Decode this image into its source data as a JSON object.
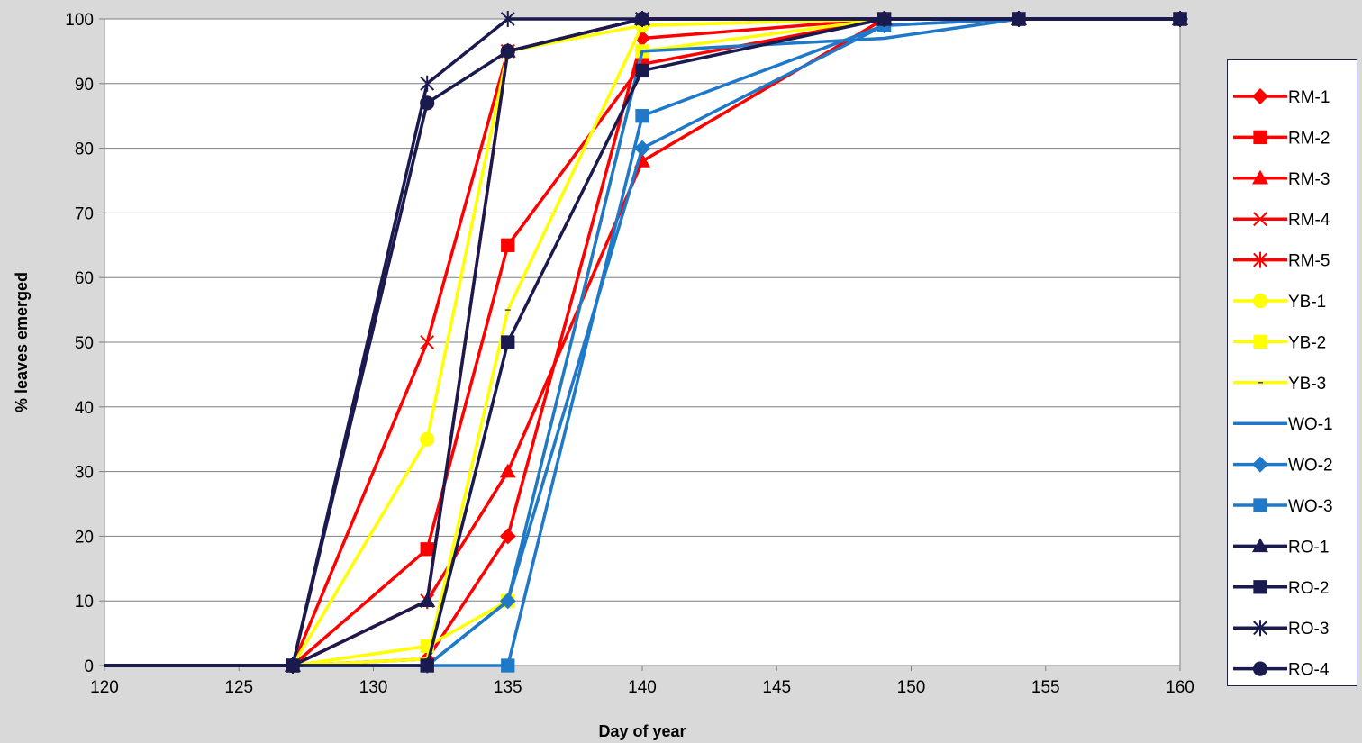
{
  "chart_data": {
    "type": "line",
    "title": "",
    "xlabel": "Day of year",
    "ylabel": "% leaves emerged",
    "xlim": [
      120,
      160
    ],
    "ylim": [
      0,
      100
    ],
    "xticks": [
      "120",
      "125",
      "130",
      "135",
      "140",
      "145",
      "150",
      "155",
      "160"
    ],
    "yticks": [
      "0",
      "10",
      "20",
      "30",
      "40",
      "50",
      "60",
      "70",
      "80",
      "90",
      "100"
    ],
    "grid": "horizontal",
    "legend_position": "right",
    "series": [
      {
        "name": "RM-1",
        "color": "#ff0000",
        "marker": "diamond",
        "points": [
          [
            120,
            0
          ],
          [
            127,
            0
          ],
          [
            132,
            1
          ],
          [
            135,
            20
          ],
          [
            140,
            97
          ],
          [
            149,
            100
          ],
          [
            154,
            100
          ],
          [
            160,
            100
          ]
        ]
      },
      {
        "name": "RM-2",
        "color": "#ff0000",
        "marker": "square",
        "points": [
          [
            120,
            0
          ],
          [
            127,
            0
          ],
          [
            132,
            18
          ],
          [
            135,
            65
          ],
          [
            140,
            93
          ],
          [
            149,
            100
          ],
          [
            154,
            100
          ],
          [
            160,
            100
          ]
        ]
      },
      {
        "name": "RM-3",
        "color": "#ff0000",
        "marker": "triangle",
        "points": [
          [
            120,
            0
          ],
          [
            127,
            0
          ],
          [
            132,
            10
          ],
          [
            135,
            30
          ],
          [
            140,
            78
          ],
          [
            149,
            100
          ],
          [
            154,
            100
          ],
          [
            160,
            100
          ]
        ]
      },
      {
        "name": "RM-4",
        "color": "#ff0000",
        "marker": "x",
        "points": [
          [
            120,
            0
          ],
          [
            127,
            0
          ],
          [
            132,
            50
          ],
          [
            135,
            95
          ],
          [
            140,
            100
          ],
          [
            149,
            100
          ],
          [
            154,
            100
          ],
          [
            160,
            100
          ]
        ]
      },
      {
        "name": "RM-5",
        "color": "#ff0000",
        "marker": "star",
        "points": [
          [
            120,
            0
          ],
          [
            127,
            0
          ],
          [
            132,
            10
          ],
          [
            135,
            95
          ],
          [
            140,
            100
          ],
          [
            149,
            100
          ],
          [
            154,
            100
          ],
          [
            160,
            100
          ]
        ]
      },
      {
        "name": "YB-1",
        "color": "#ffff00",
        "marker": "circle",
        "points": [
          [
            120,
            0
          ],
          [
            127,
            0
          ],
          [
            132,
            35
          ],
          [
            135,
            95
          ],
          [
            140,
            99
          ],
          [
            149,
            100
          ],
          [
            154,
            100
          ],
          [
            160,
            100
          ]
        ]
      },
      {
        "name": "YB-2",
        "color": "#ffff00",
        "marker": "square",
        "points": [
          [
            120,
            0
          ],
          [
            127,
            0
          ],
          [
            132,
            3
          ],
          [
            135,
            10
          ],
          [
            140,
            95
          ],
          [
            149,
            100
          ],
          [
            154,
            100
          ],
          [
            160,
            100
          ]
        ]
      },
      {
        "name": "YB-3",
        "color": "#ffff00",
        "marker": "dash",
        "points": [
          [
            120,
            0
          ],
          [
            127,
            0
          ],
          [
            132,
            1
          ],
          [
            135,
            55
          ],
          [
            140,
            99
          ],
          [
            149,
            100
          ],
          [
            154,
            100
          ],
          [
            160,
            100
          ]
        ]
      },
      {
        "name": "WO-1",
        "color": "#1f78c8",
        "marker": "none",
        "points": [
          [
            120,
            0
          ],
          [
            127,
            0
          ],
          [
            132,
            0
          ],
          [
            135,
            10
          ],
          [
            140,
            95
          ],
          [
            149,
            97
          ],
          [
            154,
            100
          ],
          [
            160,
            100
          ]
        ]
      },
      {
        "name": "WO-2",
        "color": "#1f78c8",
        "marker": "diamond",
        "points": [
          [
            120,
            0
          ],
          [
            127,
            0
          ],
          [
            132,
            0
          ],
          [
            135,
            10
          ],
          [
            140,
            80
          ],
          [
            149,
            99
          ],
          [
            154,
            100
          ],
          [
            160,
            100
          ]
        ]
      },
      {
        "name": "WO-3",
        "color": "#1f78c8",
        "marker": "square",
        "points": [
          [
            120,
            0
          ],
          [
            127,
            0
          ],
          [
            132,
            0
          ],
          [
            135,
            0
          ],
          [
            140,
            85
          ],
          [
            149,
            99
          ],
          [
            154,
            100
          ],
          [
            160,
            100
          ]
        ]
      },
      {
        "name": "RO-1",
        "color": "#1a1a4e",
        "marker": "triangle",
        "points": [
          [
            120,
            0
          ],
          [
            127,
            0
          ],
          [
            132,
            10
          ],
          [
            135,
            95
          ],
          [
            140,
            100
          ],
          [
            149,
            100
          ],
          [
            154,
            100
          ],
          [
            160,
            100
          ]
        ]
      },
      {
        "name": "RO-2",
        "color": "#1a1a4e",
        "marker": "square",
        "points": [
          [
            120,
            0
          ],
          [
            127,
            0
          ],
          [
            132,
            0
          ],
          [
            135,
            50
          ],
          [
            140,
            92
          ],
          [
            149,
            100
          ],
          [
            154,
            100
          ],
          [
            160,
            100
          ]
        ]
      },
      {
        "name": "RO-3",
        "color": "#1a1a4e",
        "marker": "star",
        "points": [
          [
            120,
            0
          ],
          [
            127,
            0
          ],
          [
            132,
            90
          ],
          [
            135,
            100
          ],
          [
            140,
            100
          ],
          [
            149,
            100
          ],
          [
            154,
            100
          ],
          [
            160,
            100
          ]
        ]
      },
      {
        "name": "RO-4",
        "color": "#1a1a4e",
        "marker": "circle",
        "points": [
          [
            120,
            0
          ],
          [
            127,
            0
          ],
          [
            132,
            87
          ],
          [
            135,
            95
          ],
          [
            140,
            100
          ],
          [
            149,
            100
          ],
          [
            154,
            100
          ],
          [
            160,
            100
          ]
        ]
      }
    ]
  }
}
